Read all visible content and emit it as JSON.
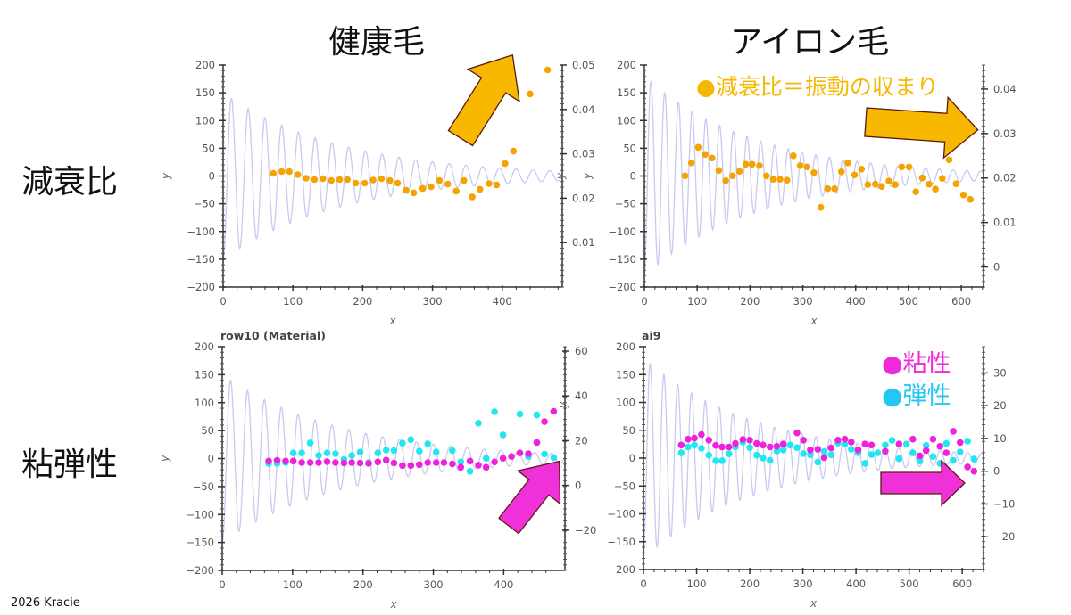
{
  "slide": {
    "column_titles": [
      "健康毛",
      "アイロン毛"
    ],
    "row_titles": [
      "減衰比",
      "粘弾性"
    ],
    "footer": "2026 Kracie",
    "legend_damping": "●減衰比＝振動の収まり",
    "legend_viscosity": "●粘性",
    "legend_elasticity": "●弾性",
    "colors": {
      "damping": "#f5a300",
      "viscosity": "#ee22dd",
      "elasticity": "#22e6f0",
      "signal": "#c9c9f2",
      "arrow_orange": "#f8b800",
      "arrow_magenta": "#f030d8"
    }
  },
  "chart_data": [
    {
      "type": "scatter",
      "title": "",
      "xlabel": "x",
      "ylabel": "y",
      "y2label": "y",
      "xlim": [
        0,
        486
      ],
      "ylim": [
        -200,
        200
      ],
      "y2lim": [
        0,
        0.05
      ],
      "xticks": [
        0,
        100,
        200,
        300,
        400
      ],
      "yticks": [
        -200,
        -150,
        -100,
        -50,
        0,
        50,
        100,
        150,
        200
      ],
      "y2ticks": [
        0.01,
        0.02,
        0.03,
        0.04,
        0.05
      ],
      "signal": {
        "amplitude": 150,
        "period": 24,
        "decay": 170
      },
      "series": [
        {
          "key": "damping",
          "axis": "y2",
          "x": [
            72,
            84,
            95,
            107,
            119,
            131,
            143,
            155,
            167,
            178,
            190,
            203,
            215,
            227,
            239,
            250,
            262,
            273,
            286,
            298,
            310,
            322,
            334,
            345,
            357,
            368,
            381,
            392,
            404,
            416,
            440,
            465
          ],
          "y": [
            0.0256,
            0.026,
            0.026,
            0.0253,
            0.0245,
            0.0242,
            0.0244,
            0.024,
            0.0242,
            0.0242,
            0.0234,
            0.0234,
            0.0241,
            0.0244,
            0.024,
            0.0234,
            0.0218,
            0.0212,
            0.0222,
            0.0226,
            0.024,
            0.0232,
            0.0216,
            0.024,
            0.0203,
            0.022,
            0.0233,
            0.023,
            0.0278,
            0.0306,
            0.0435,
            0.0489
          ]
        }
      ]
    },
    {
      "type": "scatter",
      "title": "",
      "xlabel": "x",
      "ylabel": "y",
      "y2label": "",
      "xlim": [
        0,
        642
      ],
      "ylim": [
        -200,
        200
      ],
      "y2lim": [
        -0.0045,
        0.0454
      ],
      "xticks": [
        0,
        100,
        200,
        300,
        400,
        500,
        600
      ],
      "yticks": [
        -200,
        -150,
        -100,
        -50,
        0,
        50,
        100,
        150,
        200
      ],
      "y2ticks": [
        0,
        0.01,
        0.02,
        0.03,
        0.04
      ],
      "signal": {
        "amplitude": 180,
        "period": 26,
        "decay": 210
      },
      "series": [
        {
          "key": "damping",
          "axis": "y2",
          "x": [
            77,
            89,
            102,
            115,
            128,
            141,
            154,
            167,
            180,
            192,
            204,
            218,
            231,
            244,
            257,
            270,
            282,
            295,
            308,
            321,
            334,
            347,
            360,
            373,
            385,
            398,
            411,
            423,
            437,
            449,
            463,
            475,
            487,
            501,
            514,
            526,
            539,
            551,
            564,
            577,
            590,
            604,
            617
          ],
          "y": [
            0.0205,
            0.0234,
            0.0269,
            0.0253,
            0.0245,
            0.0217,
            0.0194,
            0.0205,
            0.0215,
            0.0231,
            0.0231,
            0.0228,
            0.0205,
            0.0197,
            0.0197,
            0.0195,
            0.025,
            0.0228,
            0.0225,
            0.0212,
            0.0134,
            0.0176,
            0.0176,
            0.0214,
            0.0234,
            0.0207,
            0.022,
            0.0185,
            0.0186,
            0.0181,
            0.0193,
            0.0185,
            0.0225,
            0.0225,
            0.0169,
            0.02,
            0.0186,
            0.0175,
            0.0199,
            0.0241,
            0.0187,
            0.0162,
            0.0152
          ]
        }
      ]
    },
    {
      "type": "scatter",
      "title": "row10 (Material)",
      "xlabel": "x",
      "ylabel": "y",
      "y2label": "y",
      "xlim": [
        0,
        487
      ],
      "ylim": [
        -200,
        200
      ],
      "y2lim": [
        -38,
        62
      ],
      "xticks": [
        0,
        100,
        200,
        300,
        400
      ],
      "yticks": [
        -200,
        -150,
        -100,
        -50,
        0,
        50,
        100,
        150,
        200
      ],
      "y2ticks": [
        -20,
        0,
        20,
        40,
        60
      ],
      "signal": {
        "amplitude": 150,
        "period": 24,
        "decay": 170
      },
      "series": [
        {
          "key": "elasticity",
          "axis": "y2",
          "x": [
            66,
            78,
            90,
            101,
            113,
            125,
            137,
            149,
            161,
            173,
            184,
            196,
            208,
            221,
            233,
            244,
            256,
            268,
            280,
            292,
            304,
            327,
            339,
            352,
            364,
            375,
            387,
            399,
            423,
            435,
            447,
            458,
            471
          ],
          "y": [
            9.8,
            9.8,
            10.2,
            14.5,
            14.5,
            19.0,
            13.4,
            14.5,
            14.2,
            11.6,
            13.4,
            14.9,
            10.2,
            14.5,
            15.8,
            15.6,
            18.9,
            20.5,
            15.3,
            18.6,
            14.9,
            15.6,
            10.5,
            6.3,
            27.8,
            12.1,
            32.9,
            22.6,
            31.9,
            12.9,
            31.5,
            14.0,
            12.4
          ]
        },
        {
          "key": "viscosity",
          "axis": "y2",
          "x": [
            66,
            78,
            90,
            101,
            113,
            125,
            137,
            149,
            161,
            173,
            184,
            196,
            208,
            221,
            233,
            244,
            256,
            268,
            280,
            292,
            304,
            315,
            327,
            339,
            352,
            364,
            375,
            387,
            399,
            411,
            423,
            435,
            447,
            458,
            471
          ],
          "y": [
            10.9,
            11.2,
            10.9,
            10.9,
            10.2,
            10.2,
            10.2,
            10.6,
            10.2,
            10.0,
            10.2,
            10.0,
            9.8,
            10.5,
            11.3,
            10.0,
            8.9,
            8.9,
            9.3,
            10.2,
            10.2,
            10.2,
            9.6,
            8.1,
            10.9,
            9.0,
            8.1,
            10.5,
            12.1,
            12.9,
            14.5,
            14.2,
            19.2,
            28.5,
            33.1
          ]
        }
      ]
    },
    {
      "type": "scatter",
      "title": "ai9",
      "xlabel": "x",
      "ylabel": "",
      "y2label": "",
      "xlim": [
        0,
        640
      ],
      "ylim": [
        -200,
        200
      ],
      "y2lim": [
        -30,
        38
      ],
      "xticks": [
        0,
        100,
        200,
        300,
        400,
        500,
        600
      ],
      "yticks": [
        -200,
        -150,
        -100,
        -50,
        0,
        50,
        100,
        150,
        200
      ],
      "y2ticks": [
        -20,
        -10,
        0,
        10,
        20,
        30
      ],
      "signal": {
        "amplitude": 180,
        "period": 26,
        "decay": 210
      },
      "series": [
        {
          "key": "elasticity",
          "axis": "y2",
          "x": [
            71,
            84,
            96,
            109,
            123,
            136,
            148,
            161,
            173,
            187,
            200,
            213,
            225,
            238,
            251,
            263,
            276,
            289,
            301,
            314,
            328,
            340,
            353,
            366,
            379,
            391,
            404,
            417,
            429,
            441,
            455,
            468,
            481,
            495,
            507,
            520,
            532,
            545,
            558,
            570,
            583,
            596,
            610,
            622
          ],
          "y": [
            5.6,
            7.4,
            8.0,
            7.0,
            4.9,
            3.2,
            3.2,
            5.3,
            7.4,
            8.9,
            7.2,
            4.9,
            4.0,
            3.3,
            6.2,
            6.5,
            8.0,
            7.2,
            5.4,
            5.0,
            2.8,
            6.0,
            5.0,
            8.6,
            8.3,
            6.7,
            5.6,
            2.4,
            5.1,
            5.6,
            8.0,
            9.4,
            3.8,
            8.3,
            5.6,
            3.1,
            7.9,
            4.5,
            2.4,
            8.5,
            3.3,
            5.9,
            9.2,
            3.7
          ]
        },
        {
          "key": "viscosity",
          "axis": "y2",
          "x": [
            71,
            84,
            96,
            109,
            123,
            136,
            148,
            161,
            173,
            187,
            200,
            213,
            225,
            238,
            251,
            263,
            289,
            301,
            314,
            328,
            340,
            353,
            366,
            379,
            391,
            404,
            417,
            429,
            455,
            481,
            507,
            520,
            532,
            545,
            558,
            570,
            583,
            596,
            610,
            622
          ],
          "y": [
            8.0,
            9.8,
            10.1,
            11.2,
            9.5,
            7.9,
            7.4,
            7.4,
            8.5,
            9.7,
            9.5,
            8.5,
            8.0,
            7.4,
            7.6,
            8.3,
            11.7,
            9.5,
            6.5,
            6.7,
            4.1,
            7.1,
            9.5,
            9.8,
            8.9,
            6.5,
            8.3,
            8.0,
            6.1,
            8.3,
            9.8,
            4.7,
            6.3,
            9.8,
            7.6,
            5.6,
            12.2,
            8.8,
            1.3,
            0.0
          ]
        }
      ]
    }
  ]
}
